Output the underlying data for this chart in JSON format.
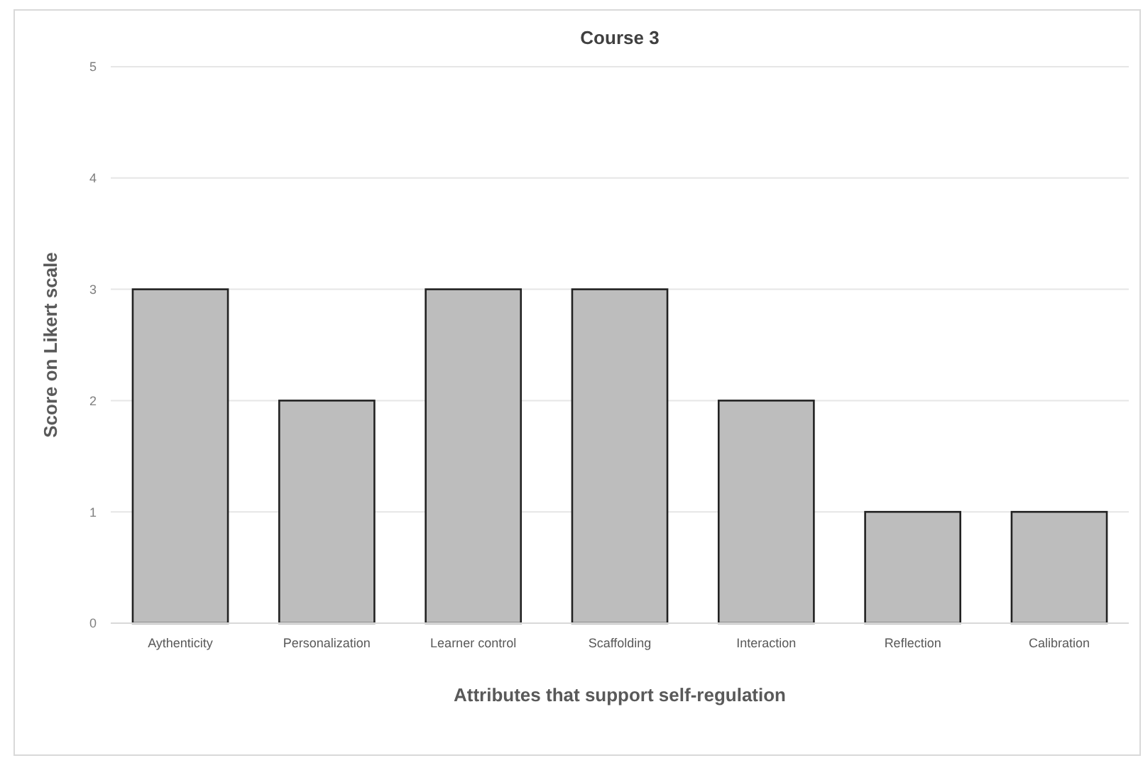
{
  "chart_data": {
    "type": "bar",
    "title": "Course 3",
    "xlabel": "Attributes that support self-regulation",
    "ylabel": "Score on Likert scale",
    "categories": [
      "Aythenticity",
      "Personalization",
      "Learner control",
      "Scaffolding",
      "Interaction",
      "Reflection",
      "Calibration"
    ],
    "values": [
      3,
      2,
      3,
      3,
      2,
      1,
      1
    ],
    "color": "#bdbdbd",
    "ylim": [
      0,
      5
    ],
    "yticks": [
      0,
      1,
      2,
      3,
      4,
      5
    ],
    "grid": "y"
  }
}
